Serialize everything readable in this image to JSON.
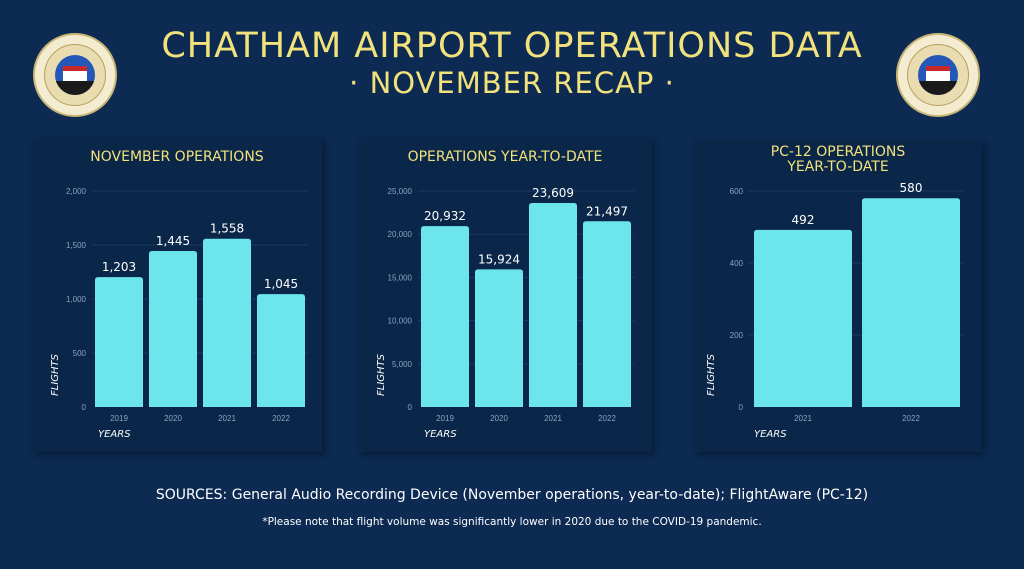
{
  "header": {
    "title": "CHATHAM AIRPORT OPERATIONS DATA",
    "subtitle": "· NOVEMBER RECAP ·",
    "seal_text": "CHATHAM · MASSACHUSETTS · EST. 1712"
  },
  "colors": {
    "background": "#0c2a52",
    "panel": "#0a2648",
    "accent": "#f2e27c",
    "bar": "#6ce6ec"
  },
  "chart_data": [
    {
      "type": "bar",
      "title": "NOVEMBER OPERATIONS",
      "xlabel": "YEARS",
      "ylabel": "FLIGHTS",
      "categories": [
        "2019",
        "2020",
        "2021",
        "2022"
      ],
      "values": [
        1203,
        1445,
        1558,
        1045
      ],
      "value_labels": [
        "1,203",
        "1,445",
        "1,558",
        "1,045"
      ],
      "ylim": [
        0,
        2000
      ],
      "yticks": [
        0,
        500,
        1000,
        1500,
        2000
      ],
      "ytick_labels": [
        "0",
        "500",
        "1,000",
        "1,500",
        "2,000"
      ],
      "grid": true
    },
    {
      "type": "bar",
      "title": "OPERATIONS YEAR-TO-DATE",
      "xlabel": "YEARS",
      "ylabel": "FLIGHTS",
      "categories": [
        "2019",
        "2020",
        "2021",
        "2022"
      ],
      "values": [
        20932,
        15924,
        23609,
        21497
      ],
      "value_labels": [
        "20,932",
        "15,924",
        "23,609",
        "21,497"
      ],
      "ylim": [
        0,
        25000
      ],
      "yticks": [
        0,
        5000,
        10000,
        15000,
        20000,
        25000
      ],
      "ytick_labels": [
        "0",
        "5,000",
        "10,000",
        "15,000",
        "20,000",
        "25,000"
      ],
      "grid": true
    },
    {
      "type": "bar",
      "title": "PC-12 OPERATIONS YEAR-TO-DATE",
      "xlabel": "YEARS",
      "ylabel": "FLIGHTS",
      "categories": [
        "2021",
        "2022"
      ],
      "values": [
        492,
        580
      ],
      "value_labels": [
        "492",
        "580"
      ],
      "ylim": [
        0,
        600
      ],
      "yticks": [
        0,
        200,
        400,
        600
      ],
      "ytick_labels": [
        "0",
        "200",
        "400",
        "600"
      ],
      "grid": true
    }
  ],
  "footer": {
    "sources": "SOURCES: General Audio Recording Device (November operations, year-to-date); FlightAware (PC-12)",
    "note": "*Please note that flight volume was significantly lower in 2020 due to the COVID-19 pandemic."
  }
}
